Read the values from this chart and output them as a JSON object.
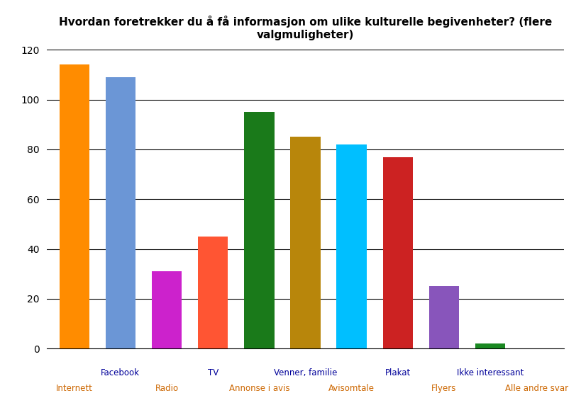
{
  "title": "Hvordan foretrekker du å få informasjon om ulike kulturelle begivenheter? (flere\nvalgmuligheter)",
  "categories": [
    "Internett",
    "Facebook",
    "Radio",
    "TV",
    "Annonse i avis",
    "Venner, familie",
    "Avisomtale",
    "Plakat",
    "Flyers",
    "Ikke interessant",
    "Alle andre svar"
  ],
  "values": [
    114,
    109,
    31,
    45,
    95,
    85,
    82,
    77,
    25,
    2,
    0
  ],
  "colors": [
    "#FF8C00",
    "#6B96D6",
    "#CC22CC",
    "#FF5533",
    "#1A7A1A",
    "#B8860B",
    "#00BFFF",
    "#CC2222",
    "#8855BB",
    "#1A8822",
    "#AAAAAA"
  ],
  "top_labels": [
    "",
    "Facebook",
    "",
    "TV",
    "",
    "Venner, familie",
    "",
    "Plakat",
    "",
    "Ikke interessant",
    ""
  ],
  "bottom_labels": [
    "Internett",
    "",
    "Radio",
    "",
    "Annonse i avis",
    "",
    "Avisomtale",
    "",
    "Flyers",
    "",
    "Alle andre svar"
  ],
  "top_label_color": "#000099",
  "bottom_label_color": "#CC6600",
  "ylim": [
    0,
    120
  ],
  "yticks": [
    0,
    20,
    40,
    60,
    80,
    100,
    120
  ],
  "figsize": [
    8.2,
    5.86
  ],
  "dpi": 100
}
